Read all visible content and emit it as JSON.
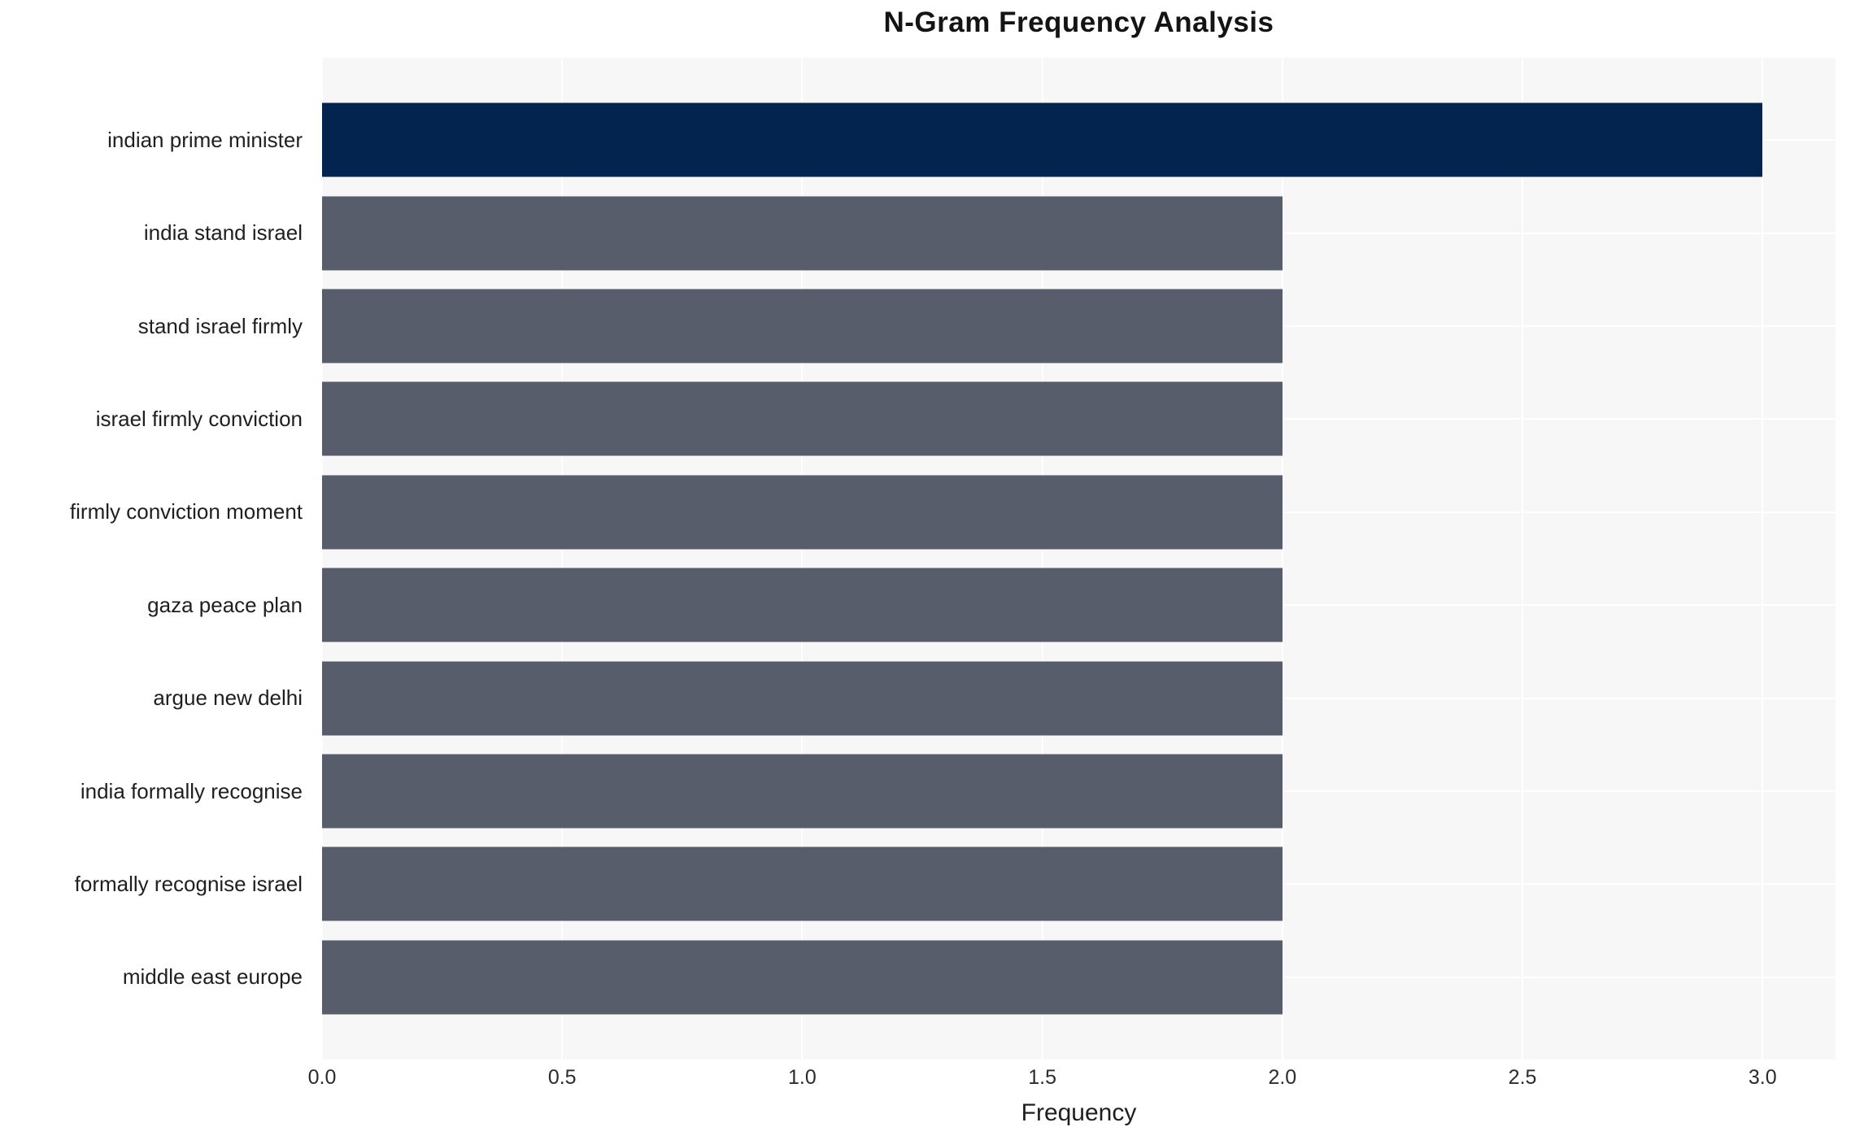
{
  "chart_data": {
    "type": "bar",
    "orientation": "horizontal",
    "title": "N-Gram Frequency Analysis",
    "xlabel": "Frequency",
    "ylabel": "",
    "categories": [
      "indian prime minister",
      "india stand israel",
      "stand israel firmly",
      "israel firmly conviction",
      "firmly conviction moment",
      "gaza peace plan",
      "argue new delhi",
      "india formally recognise",
      "formally recognise israel",
      "middle east europe"
    ],
    "values": [
      3,
      2,
      2,
      2,
      2,
      2,
      2,
      2,
      2,
      2
    ],
    "bar_colors": [
      "#02244e",
      "#575d6b",
      "#575d6b",
      "#575d6b",
      "#575d6b",
      "#575d6b",
      "#575d6b",
      "#575d6b",
      "#575d6b",
      "#575d6b"
    ],
    "xticks": [
      0.0,
      0.5,
      1.0,
      1.5,
      2.0,
      2.5,
      3.0
    ],
    "xlim": [
      0,
      3.152
    ],
    "grid": true,
    "legend": false,
    "plot_bg_color": "#f7f7f7",
    "grid_color": "#ffffff",
    "highlight_color": "#02244e",
    "default_bar_color": "#575d6b"
  }
}
